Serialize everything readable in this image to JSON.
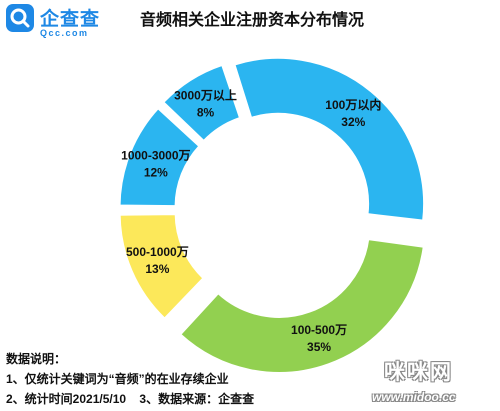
{
  "brand": {
    "logo_text": "企查查",
    "logo_domain": "Qcc.com",
    "brand_color": "#1e88e5",
    "icon": "qcc-logo-icon"
  },
  "chart_data": {
    "type": "pie",
    "title": "音频相关企业注册资本分布情况",
    "slices": [
      {
        "label": "100万以内",
        "percent_label": "32%",
        "value": 32,
        "color": "#2bb5f0"
      },
      {
        "label": "100-500万",
        "percent_label": "35%",
        "value": 35,
        "color": "#92d050"
      },
      {
        "label": "500-1000万",
        "percent_label": "13%",
        "value": 13,
        "color": "#fce85a"
      },
      {
        "label": "1000-3000万",
        "percent_label": "12%",
        "value": 12,
        "color": "#2bb5f0"
      },
      {
        "label": "3000万以上",
        "percent_label": "8%",
        "value": 8,
        "color": "#2bb5f0"
      }
    ]
  },
  "notes": {
    "heading": "数据说明：",
    "line1": "1、仅统计关键词为“音频”的在业存续企业",
    "line2": "2、统计时间2021/5/10    3、数据来源：企查查"
  },
  "watermark": {
    "text": "咪咪网",
    "url": "www.midoo.cc"
  }
}
